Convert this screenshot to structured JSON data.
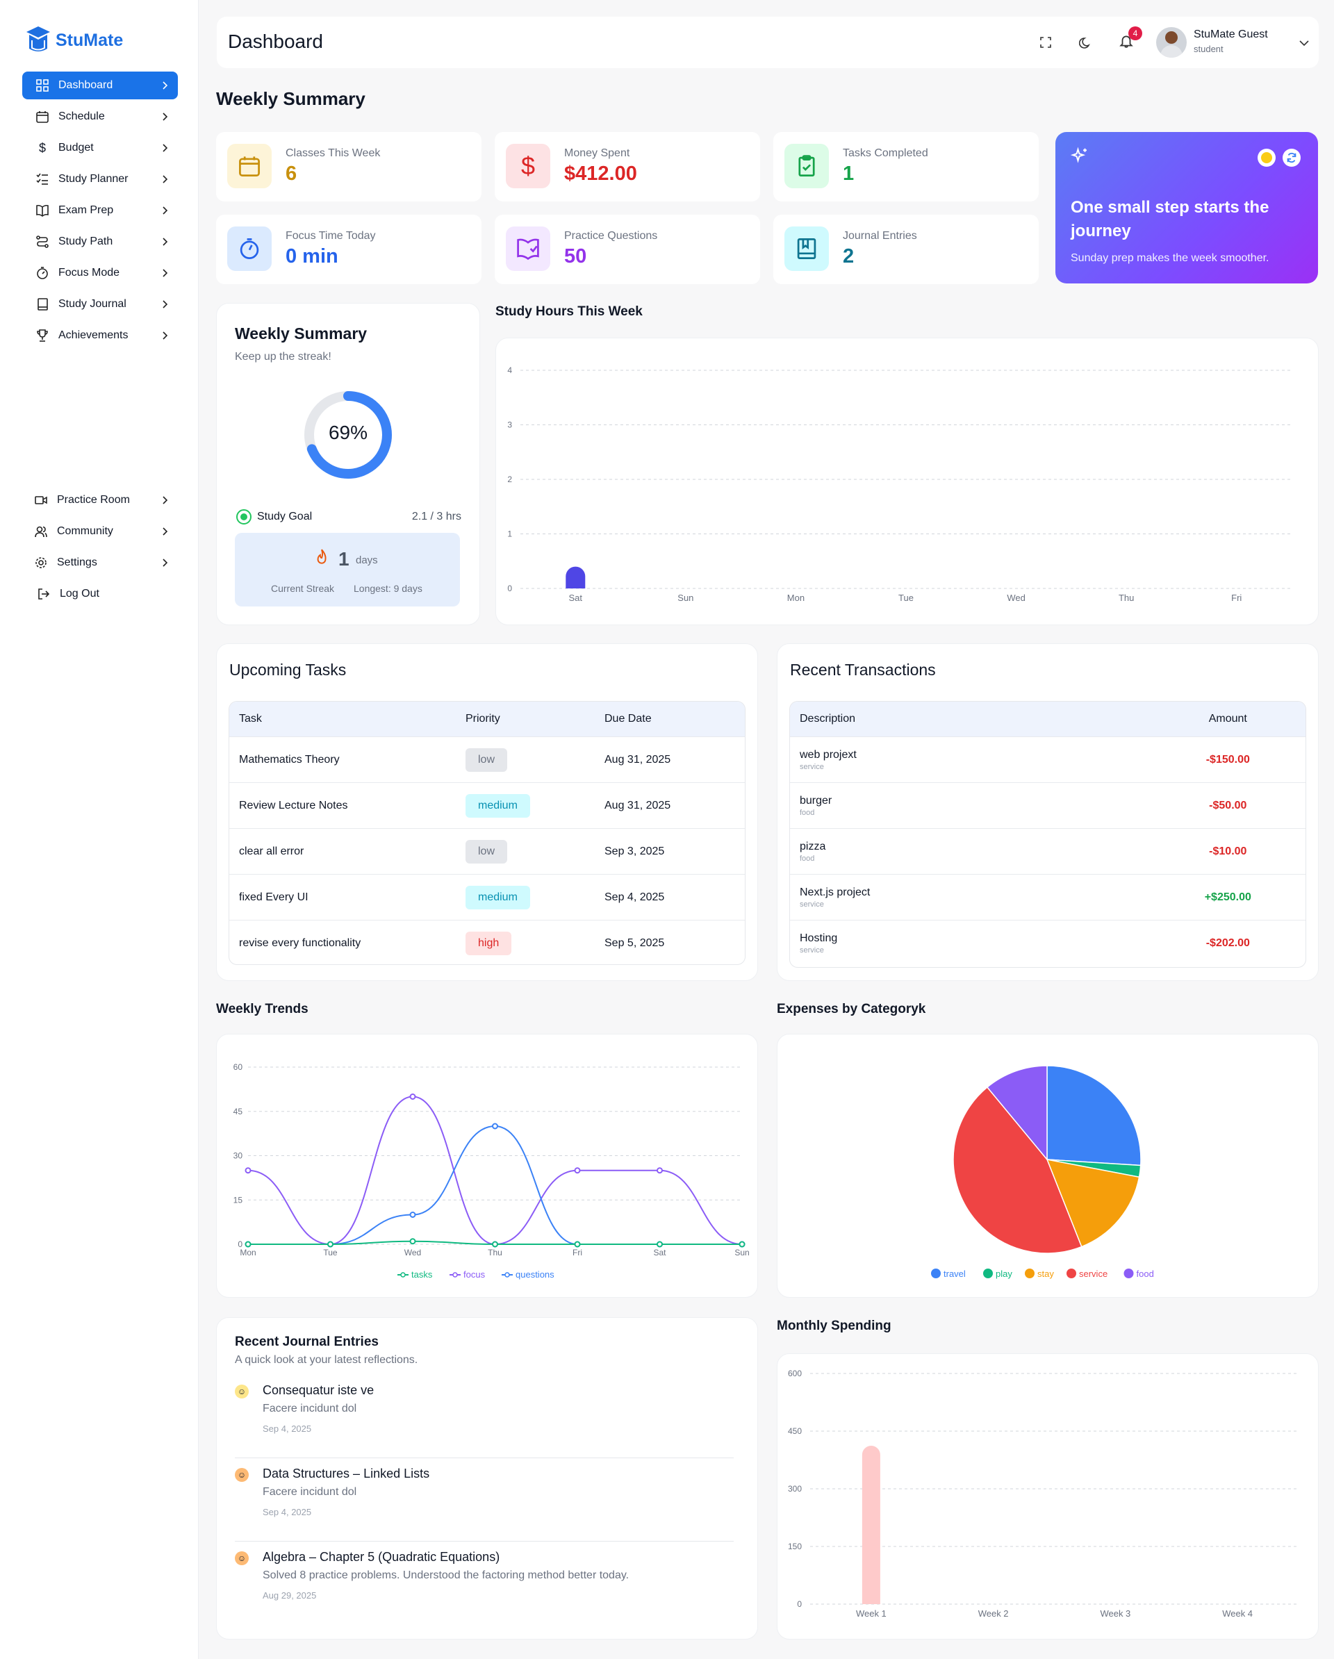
{
  "brand": {
    "name": "StuMate"
  },
  "nav": {
    "items": [
      {
        "label": "Dashboard",
        "icon": "dashboard-icon"
      },
      {
        "label": "Schedule",
        "icon": "calendar-icon"
      },
      {
        "label": "Budget",
        "icon": "dollar-icon"
      },
      {
        "label": "Study Planner",
        "icon": "list-icon"
      },
      {
        "label": "Exam Prep",
        "icon": "book-open-icon"
      },
      {
        "label": "Study Path",
        "icon": "route-icon"
      },
      {
        "label": "Focus Mode",
        "icon": "timer-icon"
      },
      {
        "label": "Study Journal",
        "icon": "notebook-icon"
      },
      {
        "label": "Achievements",
        "icon": "trophy-icon"
      }
    ],
    "bottom": [
      {
        "label": "Practice Room",
        "icon": "video-icon"
      },
      {
        "label": "Community",
        "icon": "users-icon"
      },
      {
        "label": "Settings",
        "icon": "gear-icon"
      },
      {
        "label": "Log Out",
        "icon": "logout-icon"
      }
    ]
  },
  "header": {
    "title": "Dashboard",
    "notification_count": "4",
    "user_name": "StuMate Guest",
    "user_role": "student"
  },
  "summary": {
    "title": "Weekly Summary",
    "stats": [
      {
        "label": "Classes This Week",
        "value": "6",
        "color": "#c8900d",
        "bg": "#fdf4d8",
        "icon": "calendar-icon"
      },
      {
        "label": "Money Spent",
        "value": "$412.00",
        "color": "#dc2626",
        "bg": "#fde2e4",
        "icon": "dollar-icon"
      },
      {
        "label": "Tasks Completed",
        "value": "1",
        "color": "#16a34a",
        "bg": "#dcfce7",
        "icon": "clipboard-check-icon"
      },
      {
        "label": "Focus Time Today",
        "value": "0 min",
        "color": "#2563eb",
        "bg": "#dbeafe",
        "icon": "stopwatch-icon"
      },
      {
        "label": "Practice Questions",
        "value": "50",
        "color": "#9333ea",
        "bg": "#f3e8ff",
        "icon": "book-check-icon"
      },
      {
        "label": "Journal Entries",
        "value": "2",
        "color": "#0e7490",
        "bg": "#cffafe",
        "icon": "journal-icon"
      }
    ],
    "promo": {
      "title": "One small step starts the journey",
      "subtitle": "Sunday prep makes the week smoother."
    }
  },
  "weekly_card": {
    "title": "Weekly Summary",
    "subtitle": "Keep up the streak!",
    "progress": "69%",
    "progress_value": 0.69,
    "goal_label": "Study Goal",
    "goal_value": "2.1 / 3 hrs",
    "streak_value": "1",
    "streak_unit": "days",
    "streak_label": "Current Streak",
    "longest": "Longest: 9 days"
  },
  "study_hours": {
    "title": "Study Hours This Week",
    "chart_data": {
      "type": "bar",
      "categories": [
        "Sat",
        "Sun",
        "Mon",
        "Tue",
        "Wed",
        "Thu",
        "Fri"
      ],
      "values": [
        0.4,
        0,
        0,
        0,
        0,
        0,
        0
      ],
      "ylim": [
        0,
        4
      ],
      "yticks": [
        "0",
        "1",
        "2",
        "3",
        "4"
      ],
      "color": "#4f46e5"
    }
  },
  "tasks": {
    "title": "Upcoming Tasks",
    "columns": [
      "Task",
      "Priority",
      "Due Date"
    ],
    "rows": [
      {
        "task": "Mathematics Theory",
        "priority": "low",
        "due": "Aug 31, 2025"
      },
      {
        "task": "Review Lecture Notes",
        "priority": "medium",
        "due": "Aug 31, 2025"
      },
      {
        "task": "clear all error",
        "priority": "low",
        "due": "Sep 3, 2025"
      },
      {
        "task": "fixed Every UI",
        "priority": "medium",
        "due": "Sep 4, 2025"
      },
      {
        "task": "revise every functionality",
        "priority": "high",
        "due": "Sep 5, 2025"
      }
    ]
  },
  "transactions": {
    "title": "Recent Transactions",
    "columns": [
      "Description",
      "Amount"
    ],
    "rows": [
      {
        "desc": "web projext",
        "cat": "service",
        "amount": "-$150.00",
        "color": "#dc2626"
      },
      {
        "desc": "burger",
        "cat": "food",
        "amount": "-$50.00",
        "color": "#dc2626"
      },
      {
        "desc": "pizza",
        "cat": "food",
        "amount": "-$10.00",
        "color": "#dc2626"
      },
      {
        "desc": "Next.js project",
        "cat": "service",
        "amount": "+$250.00",
        "color": "#16a34a"
      },
      {
        "desc": "Hosting",
        "cat": "service",
        "amount": "-$202.00",
        "color": "#dc2626"
      }
    ]
  },
  "trends": {
    "title": "Weekly Trends",
    "chart_data": {
      "type": "line",
      "x": [
        "Mon",
        "Tue",
        "Wed",
        "Thu",
        "Fri",
        "Sat",
        "Sun"
      ],
      "ylim": [
        0,
        60
      ],
      "yticks": [
        "0",
        "15",
        "30",
        "45",
        "60"
      ],
      "series": [
        {
          "name": "tasks",
          "color": "#10b981",
          "values": [
            0,
            0,
            1,
            0,
            0,
            0,
            0
          ]
        },
        {
          "name": "focus",
          "color": "#8b5cf6",
          "values": [
            25,
            0,
            50,
            0,
            25,
            25,
            0
          ]
        },
        {
          "name": "questions",
          "color": "#3b82f6",
          "values": [
            0,
            0,
            10,
            40,
            0,
            0,
            0
          ]
        }
      ]
    }
  },
  "expenses": {
    "title": "Expenses by Categoryk",
    "chart_data": {
      "type": "pie",
      "slices": [
        {
          "name": "travel",
          "value": 26,
          "color": "#3b82f6"
        },
        {
          "name": "play",
          "value": 2,
          "color": "#10b981"
        },
        {
          "name": "stay",
          "value": 16,
          "color": "#f59e0b"
        },
        {
          "name": "service",
          "value": 45,
          "color": "#ef4444"
        },
        {
          "name": "food",
          "value": 11,
          "color": "#8b5cf6"
        }
      ]
    }
  },
  "journal": {
    "title": "Recent Journal Entries",
    "subtitle": "A quick look at your latest reflections.",
    "entries": [
      {
        "title": "Consequatur iste ve",
        "body": "Facere incidunt dol",
        "date": "Sep 4, 2025"
      },
      {
        "title": "Data Structures – Linked Lists",
        "body": "Facere incidunt dol",
        "date": "Sep 4, 2025"
      },
      {
        "title": "Algebra – Chapter 5 (Quadratic Equations)",
        "body": "Solved 8 practice problems. Understood the factoring method better today.",
        "date": "Aug 29, 2025"
      }
    ]
  },
  "monthly": {
    "title": "Monthly Spending",
    "chart_data": {
      "type": "bar",
      "categories": [
        "Week 1",
        "Week 2",
        "Week 3",
        "Week 4"
      ],
      "values": [
        412,
        0,
        0,
        0
      ],
      "ylim": [
        0,
        600
      ],
      "yticks": [
        "0",
        "150",
        "300",
        "450",
        "600"
      ],
      "color": "#fecaca"
    }
  }
}
